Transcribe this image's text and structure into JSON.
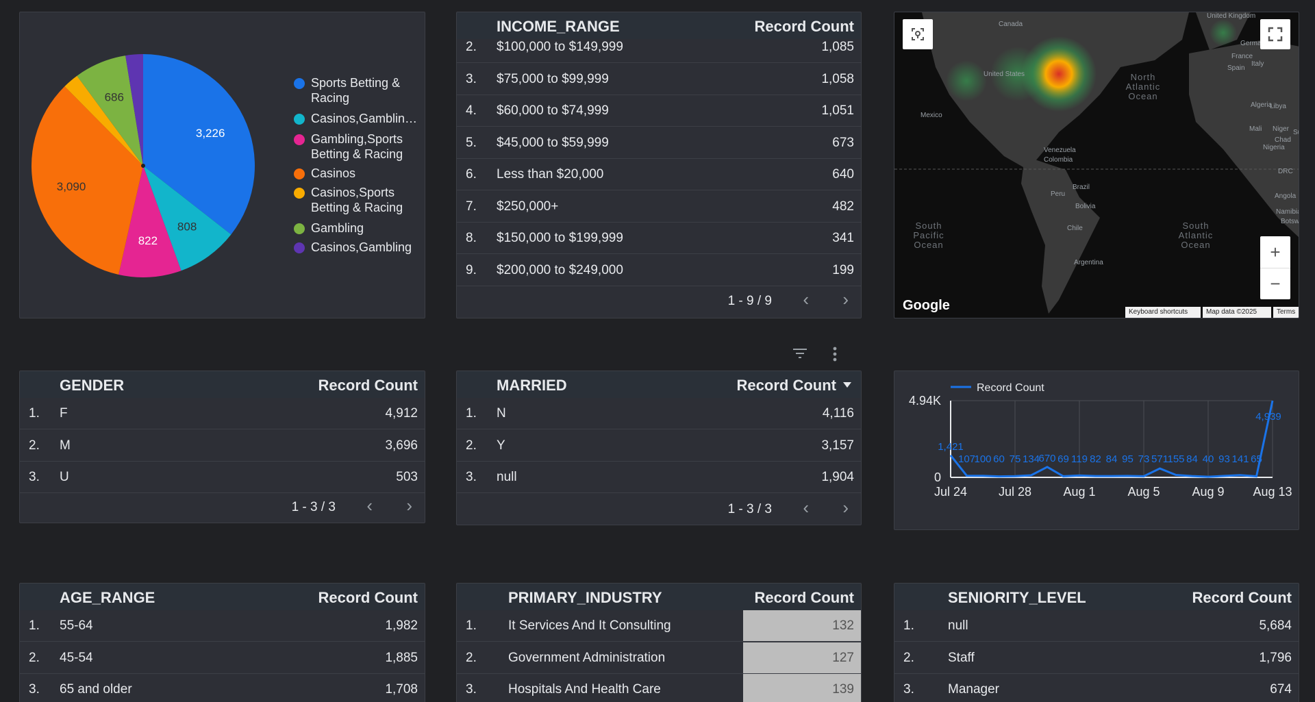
{
  "pie": {
    "chart_data": {
      "type": "pie",
      "slices": [
        {
          "name": "Sports Betting & Racing",
          "value": 3226,
          "color": "#1a73e8"
        },
        {
          "name": "Casinos,Gamblin…",
          "value": 808,
          "color": "#12b5cb"
        },
        {
          "name": "Gambling,Sports Betting & Racing",
          "value": 822,
          "color": "#e52592"
        },
        {
          "name": "Casinos",
          "value": 3090,
          "color": "#f86f0a"
        },
        {
          "name": "Casinos,Sports Betting & Racing",
          "value": 210,
          "color": "#f9ab00"
        },
        {
          "name": "Gambling",
          "value": 686,
          "color": "#7cb342"
        },
        {
          "name": "Casinos,Gambling",
          "value": 230,
          "color": "#5e35b1"
        }
      ],
      "data_labels": [
        "3,226",
        "808",
        "822",
        "3,090",
        "",
        "686",
        ""
      ]
    },
    "legend": [
      {
        "text": "Sports Betting & Racing",
        "color": "#1a73e8"
      },
      {
        "text": "Casinos,Gamblin…",
        "color": "#12b5cb"
      },
      {
        "text": "Gambling,Sports Betting & Racing",
        "color": "#e52592"
      },
      {
        "text": "Casinos",
        "color": "#f86f0a"
      },
      {
        "text": "Casinos,Sports Betting & Racing",
        "color": "#f9ab00"
      },
      {
        "text": "Gambling",
        "color": "#7cb342"
      },
      {
        "text": "Casinos,Gambling",
        "color": "#5e35b1"
      }
    ]
  },
  "income": {
    "header_dim": "INCOME_RANGE",
    "header_metric": "Record Count",
    "rows": [
      {
        "idx": "2.",
        "name": "$100,000 to $149,999",
        "val": "1,085"
      },
      {
        "idx": "3.",
        "name": "$75,000 to $99,999",
        "val": "1,058"
      },
      {
        "idx": "4.",
        "name": "$60,000 to $74,999",
        "val": "1,051"
      },
      {
        "idx": "5.",
        "name": "$45,000 to $59,999",
        "val": "673"
      },
      {
        "idx": "6.",
        "name": "Less than $20,000",
        "val": "640"
      },
      {
        "idx": "7.",
        "name": "$250,000+",
        "val": "482"
      },
      {
        "idx": "8.",
        "name": "$150,000 to $199,999",
        "val": "341"
      },
      {
        "idx": "9.",
        "name": "$200,000 to $249,000",
        "val": "199"
      }
    ],
    "pager": "1 - 9 / 9"
  },
  "map": {
    "labels": [
      "Canada",
      "United States",
      "Mexico",
      "Venezuela",
      "Colombia",
      "Peru",
      "Brazil",
      "Bolivia",
      "Chile",
      "Argentina",
      "United Kingdom",
      "Germany",
      "France",
      "Spain",
      "Italy",
      "Algeria",
      "Libya",
      "Mali",
      "Niger",
      "Chad",
      "Sud",
      "Nigeria",
      "DRC",
      "Angola",
      "Namibia",
      "Botswana"
    ],
    "oceans": [
      "North Atlantic Ocean",
      "South Pacific Ocean",
      "South Atlantic Ocean"
    ],
    "google": "Google",
    "footer": {
      "shortcuts": "Keyboard shortcuts",
      "data": "Map data ©2025",
      "terms": "Terms"
    },
    "zoom_in": "+",
    "zoom_out": "−"
  },
  "gender": {
    "header_dim": "GENDER",
    "header_metric": "Record Count",
    "rows": [
      {
        "idx": "1.",
        "name": "F",
        "val": "4,912"
      },
      {
        "idx": "2.",
        "name": "M",
        "val": "3,696"
      },
      {
        "idx": "3.",
        "name": "U",
        "val": "503"
      }
    ],
    "pager": "1 - 3 / 3"
  },
  "married": {
    "header_dim": "MARRIED",
    "header_metric": "Record Count",
    "rows": [
      {
        "idx": "1.",
        "name": "N",
        "val": "4,116"
      },
      {
        "idx": "2.",
        "name": "Y",
        "val": "3,157"
      },
      {
        "idx": "3.",
        "name": "null",
        "val": "1,904"
      }
    ],
    "pager": "1 - 3 / 3"
  },
  "timeseries": {
    "chart_data": {
      "type": "line",
      "series": [
        {
          "name": "Record Count",
          "color": "#1a73e8"
        }
      ],
      "x": [
        "Jul 24",
        "Jul 25",
        "Jul 26",
        "Jul 27",
        "Jul 28",
        "Jul 29",
        "Jul 30",
        "Jul 31",
        "Aug 1",
        "Aug 2",
        "Aug 3",
        "Aug 4",
        "Aug 5",
        "Aug 6",
        "Aug 7",
        "Aug 8",
        "Aug 9",
        "Aug 10",
        "Aug 11",
        "Aug 12",
        "Aug 13"
      ],
      "values": [
        1421,
        107,
        100,
        60,
        75,
        134,
        670,
        69,
        119,
        82,
        84,
        95,
        73,
        571,
        155,
        84,
        40,
        93,
        141,
        65,
        4939
      ],
      "value_labels": [
        "1,421",
        "107",
        "100",
        "60",
        "75",
        "134",
        "670",
        "69",
        "119",
        "82",
        "84",
        "95",
        "73",
        "571",
        "155",
        "84",
        "40",
        "93",
        "141",
        "65",
        "4,939"
      ],
      "x_ticks": [
        "Jul 24",
        "Jul 28",
        "Aug 1",
        "Aug 5",
        "Aug 9",
        "Aug 13"
      ],
      "y_ticks": [
        "0",
        "4.94K"
      ],
      "ylim": [
        0,
        4940
      ],
      "legend": "top-left"
    }
  },
  "age": {
    "header_dim": "AGE_RANGE",
    "header_metric": "Record Count",
    "rows": [
      {
        "idx": "1.",
        "name": "55-64",
        "val": "1,982"
      },
      {
        "idx": "2.",
        "name": "45-54",
        "val": "1,885"
      },
      {
        "idx": "3.",
        "name": "65 and older",
        "val": "1,708"
      }
    ]
  },
  "industry": {
    "header_dim": "PRIMARY_INDUSTRY",
    "header_metric": "Record Count",
    "rows": [
      {
        "idx": "1.",
        "name": "It Services And It Consulting",
        "val": "132"
      },
      {
        "idx": "2.",
        "name": "Government Administration",
        "val": "127"
      },
      {
        "idx": "3.",
        "name": "Hospitals And Health Care",
        "val": "139"
      }
    ]
  },
  "seniority": {
    "header_dim": "SENIORITY_LEVEL",
    "header_metric": "Record Count",
    "rows": [
      {
        "idx": "1.",
        "name": "null",
        "val": "5,684"
      },
      {
        "idx": "2.",
        "name": "Staff",
        "val": "1,796"
      },
      {
        "idx": "3.",
        "name": "Manager",
        "val": "674"
      }
    ]
  }
}
